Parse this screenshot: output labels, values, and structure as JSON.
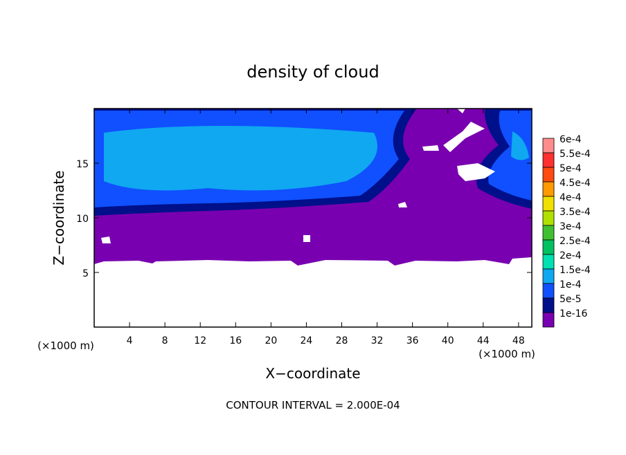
{
  "chart_data": {
    "type": "contour",
    "title": "density of cloud",
    "x_label": "X−coordinate",
    "y_label": "Z−coordinate",
    "x_unit": "(×1000 m)",
    "y_unit": "(×1000 m)",
    "footnote": "CONTOUR INTERVAL = 2.000E-04",
    "xlim": [
      0,
      49.5
    ],
    "ylim": [
      0,
      20
    ],
    "xticks": [
      4,
      8,
      12,
      16,
      20,
      24,
      28,
      32,
      36,
      40,
      44,
      48
    ],
    "yticks": [
      5,
      10,
      15
    ],
    "levels": [
      {
        "value": 0.0006,
        "label": "6e-4"
      },
      {
        "value": 0.00055,
        "label": "5.5e-4"
      },
      {
        "value": 0.0005,
        "label": "5e-4"
      },
      {
        "value": 0.00045,
        "label": "4.5e-4"
      },
      {
        "value": 0.0004,
        "label": "4e-4"
      },
      {
        "value": 0.00035,
        "label": "3.5e-4"
      },
      {
        "value": 0.0003,
        "label": "3e-4"
      },
      {
        "value": 0.00025,
        "label": "2.5e-4"
      },
      {
        "value": 0.0002,
        "label": "2e-4"
      },
      {
        "value": 0.00015,
        "label": "1.5e-4"
      },
      {
        "value": 0.0001,
        "label": "1e-4"
      },
      {
        "value": 5e-05,
        "label": "5e-5"
      },
      {
        "value": 1e-16,
        "label": "1e-16"
      }
    ],
    "level_colors": [
      "#ff8c8c",
      "#ff3030",
      "#ff4a10",
      "#ff9a00",
      "#f0e000",
      "#b0e000",
      "#40c030",
      "#00c060",
      "#00e0b0",
      "#10a8f0",
      "#1050ff",
      "#00108a",
      "#7800b0"
    ]
  }
}
